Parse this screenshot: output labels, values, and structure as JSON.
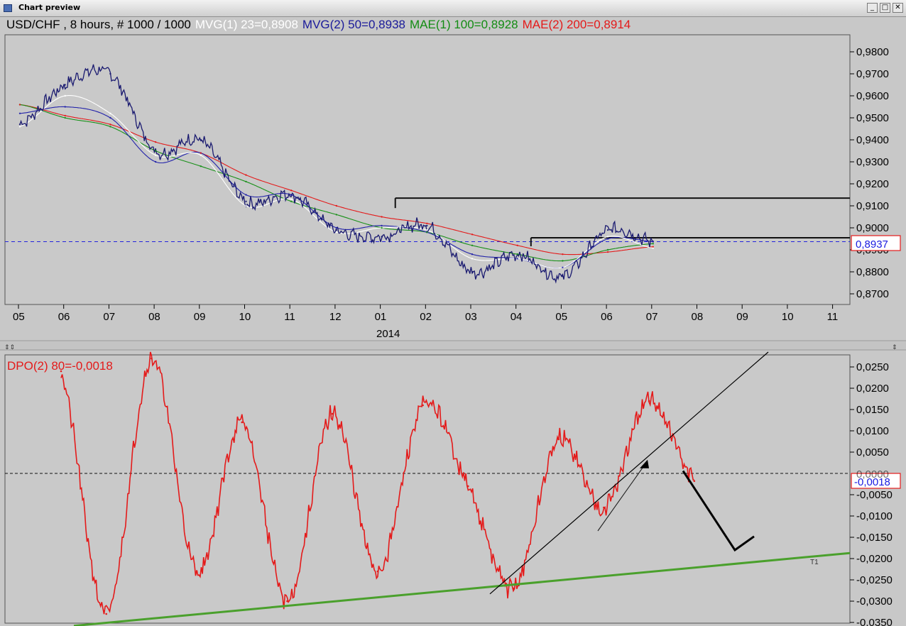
{
  "window": {
    "title": "Chart preview",
    "buttons": {
      "minimize": "_",
      "maximize": "□",
      "close": "✕"
    }
  },
  "colors": {
    "price": "#1a1a70",
    "mvg1": "#ffffff",
    "mvg2": "#2222aa",
    "mae1": "#189018",
    "mae2": "#e41a1a",
    "dpo": "#e41a1a",
    "trend": "#4aa02c",
    "last_value": "#1a1ae0"
  },
  "header": {
    "symbol": "USD/CHF , 8 hours, # 1000 / 1000",
    "mvg1": "MVG(1) 23=0,8908",
    "mvg2": "MVG(2) 50=0,8938",
    "mae1": "MAE(1) 100=0,8928",
    "mae2": "MAE(2) 200=0,8914"
  },
  "price_panel": {
    "last_value_label": "0,8937",
    "y_ticks": [
      "0,9800",
      "0,9700",
      "0,9600",
      "0,9500",
      "0,9400",
      "0,9300",
      "0,9200",
      "0,9100",
      "0,9000",
      "0,8900",
      "0,8800",
      "0,8700"
    ],
    "x_ticks": [
      "05",
      "06",
      "07",
      "08",
      "09",
      "10",
      "11",
      "12",
      "01",
      "02",
      "03",
      "04",
      "05",
      "06",
      "07",
      "08",
      "09",
      "10",
      "11"
    ],
    "year_label": "2014"
  },
  "dpo_panel": {
    "title": "DPO(2) 80=-0,0018",
    "last_value_label": "-0,0018",
    "zero_label": "0,0000",
    "y_ticks": [
      "0,0250",
      "0,0200",
      "0,0150",
      "0,0100",
      "0,0050",
      "-0,0050",
      "-0,0100",
      "-0,0150",
      "-0,0200",
      "-0,0250",
      "-0,0300",
      "-0,0350"
    ],
    "trendline_label": "T1"
  },
  "chart_data": [
    {
      "type": "line",
      "title": "USD/CHF , 8 hours, # 1000 / 1000",
      "x": [
        "05",
        "06",
        "07",
        "08",
        "09",
        "10",
        "11",
        "12",
        "01",
        "02",
        "03",
        "04",
        "05",
        "06",
        "07"
      ],
      "series": [
        {
          "name": "USD/CHF",
          "values": [
            0.947,
            0.965,
            0.97,
            0.935,
            0.94,
            0.912,
            0.915,
            0.899,
            0.896,
            0.901,
            0.88,
            0.888,
            0.878,
            0.899,
            0.8937
          ]
        },
        {
          "name": "MVG(1) 23",
          "values": [
            0.946,
            0.96,
            0.952,
            0.933,
            0.933,
            0.91,
            0.913,
            0.898,
            0.9,
            0.899,
            0.886,
            0.886,
            0.882,
            0.896,
            0.8908
          ]
        },
        {
          "name": "MVG(2) 50",
          "values": [
            0.952,
            0.955,
            0.95,
            0.93,
            0.934,
            0.915,
            0.915,
            0.9,
            0.901,
            0.898,
            0.888,
            0.886,
            0.882,
            0.895,
            0.8938
          ]
        },
        {
          "name": "MAE(1) 100",
          "values": [
            0.956,
            0.95,
            0.946,
            0.935,
            0.928,
            0.921,
            0.912,
            0.906,
            0.9,
            0.898,
            0.892,
            0.888,
            0.885,
            0.89,
            0.8928
          ]
        },
        {
          "name": "MAE(2) 200",
          "values": [
            0.956,
            0.951,
            0.947,
            0.939,
            0.934,
            0.924,
            0.917,
            0.91,
            0.905,
            0.902,
            0.897,
            0.892,
            0.888,
            0.889,
            0.8914
          ]
        }
      ],
      "horizontal_lines": [
        0.8937,
        0.9135,
        0.8955
      ],
      "ylim": [
        0.867,
        0.984
      ]
    },
    {
      "type": "line",
      "title": "DPO(2) 80=-0,0018",
      "x": [
        "05",
        "06",
        "07",
        "08",
        "09",
        "10",
        "11",
        "12",
        "01",
        "02",
        "03",
        "04",
        "05",
        "06",
        "07"
      ],
      "series": [
        {
          "name": "DPO(2) 80",
          "values": [
            0.024,
            -0.033,
            0.027,
            -0.023,
            0.012,
            -0.03,
            0.014,
            -0.023,
            0.016,
            -0.003,
            -0.027,
            0.008,
            -0.008,
            0.017,
            -0.0018
          ]
        }
      ],
      "horizontal_lines": [
        0.0
      ],
      "trendlines": [
        {
          "label": "T1",
          "points": [
            [
              0.0,
              -0.0358
            ],
            [
              1.0,
              -0.0187
            ]
          ]
        }
      ],
      "ylim": [
        -0.0375,
        0.0285
      ]
    }
  ]
}
